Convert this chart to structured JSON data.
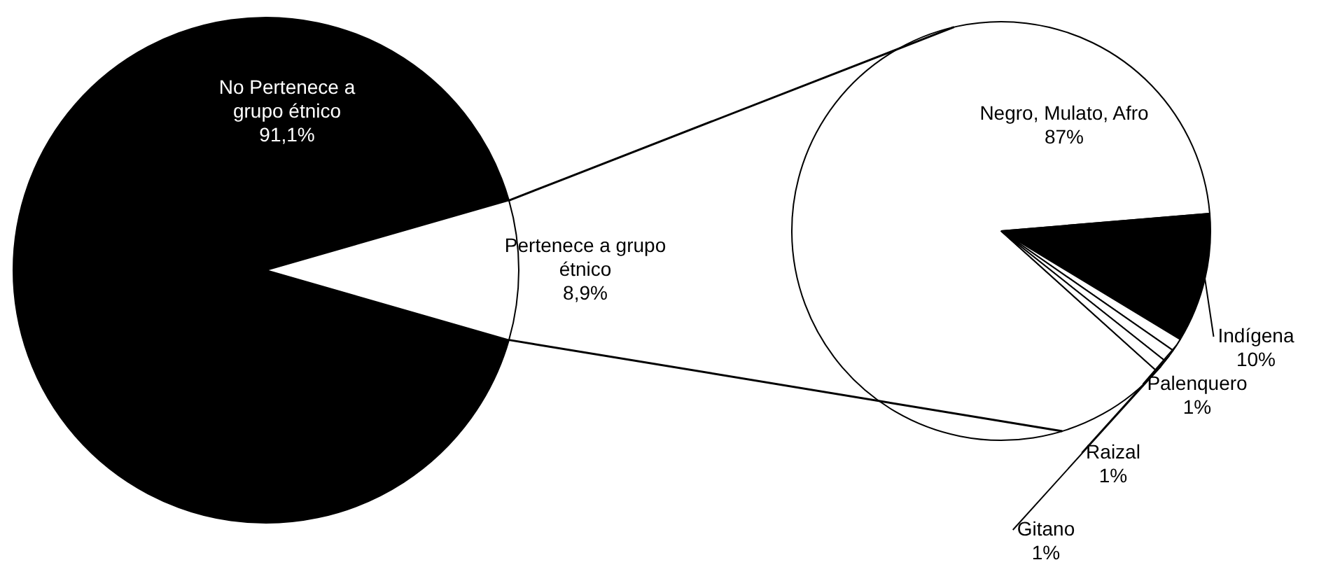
{
  "chart_data": [
    {
      "type": "pie",
      "categories": [
        "No Pertenece a grupo étnico",
        "Pertenece a grupo étnico"
      ],
      "values": [
        91.1,
        8.9
      ],
      "colors": [
        "#000000",
        "#ffffff"
      ],
      "value_labels": [
        "91,1%",
        "8,9%"
      ]
    },
    {
      "type": "pie",
      "categories": [
        "Negro, Mulato, Afro",
        "Indígena",
        "Palenquero",
        "Raizal",
        "Gitano"
      ],
      "values": [
        87,
        10,
        1,
        1,
        1
      ],
      "colors": [
        "#ffffff",
        "#000000",
        "#ffffff",
        "#ffffff",
        "#ffffff"
      ],
      "value_labels": [
        "87%",
        "10%",
        "1%",
        "1%",
        "1%"
      ]
    }
  ]
}
